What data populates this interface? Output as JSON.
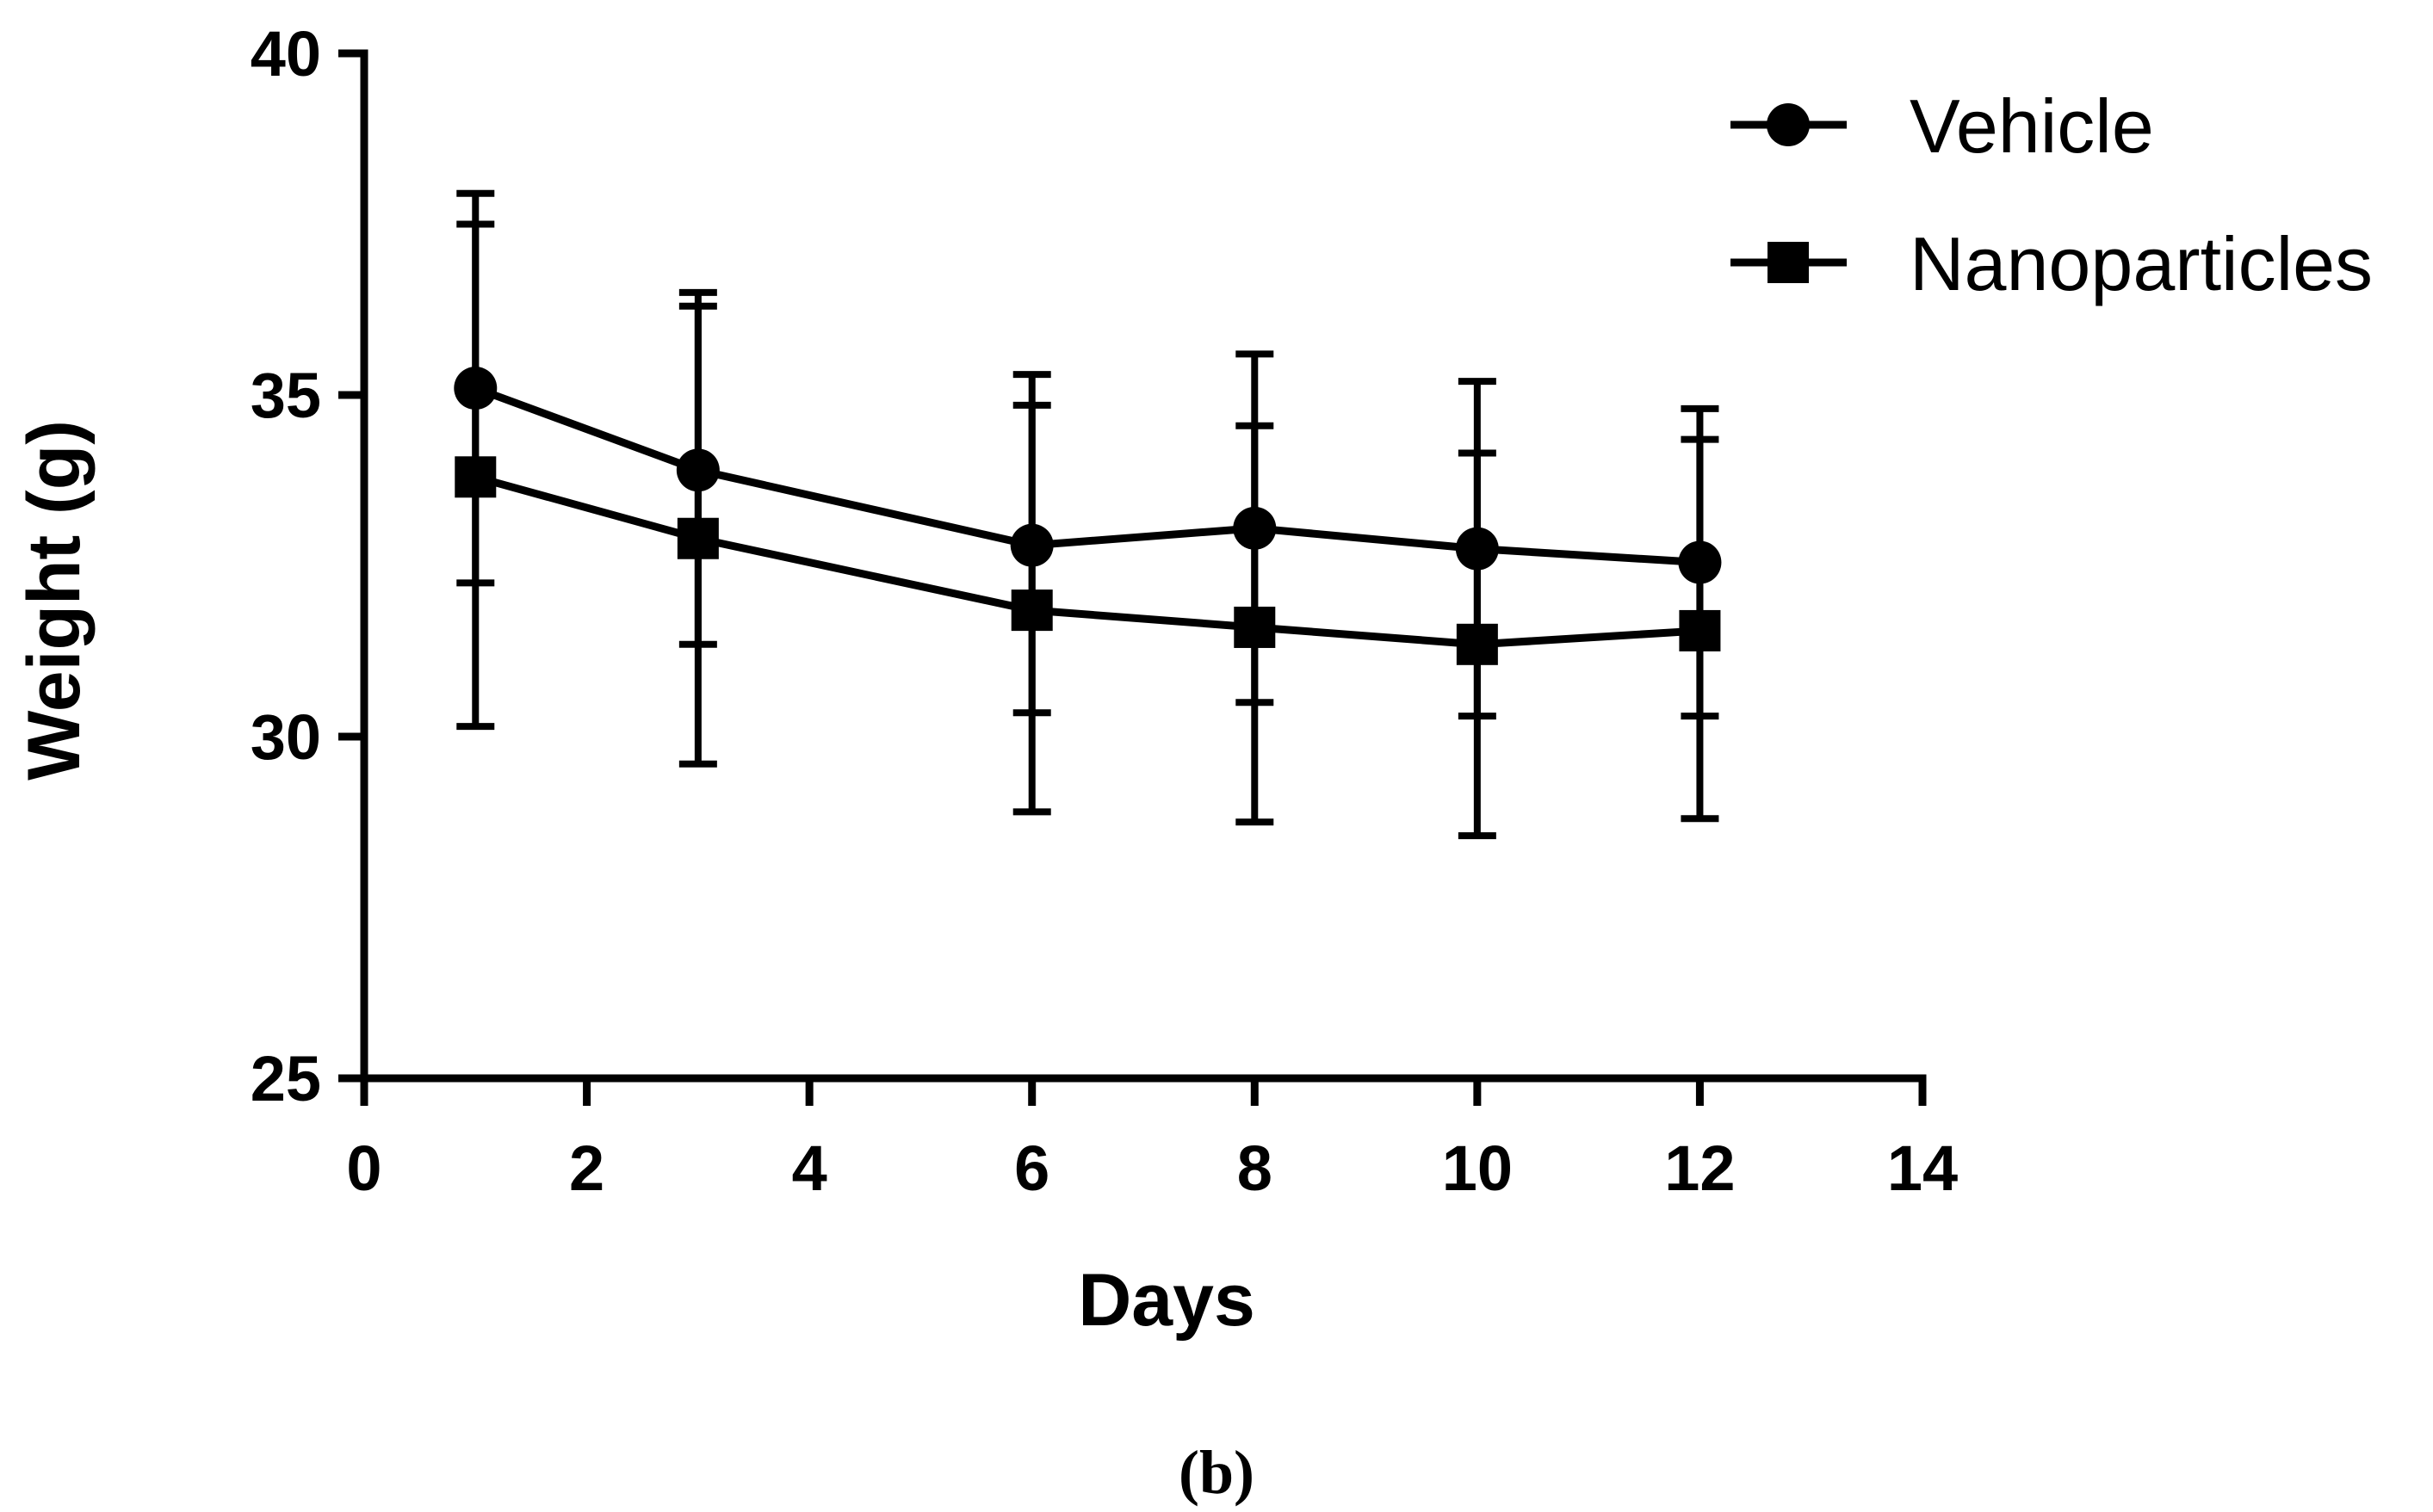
{
  "chart_data": {
    "type": "line",
    "title": "",
    "xlabel": "Days",
    "ylabel": "Weight (g)",
    "caption": "(b)",
    "xlim": [
      0,
      14
    ],
    "ylim": [
      25,
      40
    ],
    "x_ticks": [
      0,
      2,
      4,
      6,
      8,
      10,
      12,
      14
    ],
    "y_ticks": [
      25,
      30,
      35,
      40
    ],
    "legend_position": "top-right",
    "series": [
      {
        "name": "Vehicle",
        "marker": "circle",
        "color": "#000000",
        "x": [
          1,
          3,
          6,
          8,
          10,
          12
        ],
        "values": [
          35.1,
          33.9,
          32.8,
          33.05,
          32.75,
          32.55
        ],
        "error_upper": [
          37.5,
          36.3,
          34.85,
          34.55,
          34.15,
          34.35
        ],
        "error_lower": [
          32.25,
          31.35,
          30.35,
          30.5,
          30.3,
          30.3
        ]
      },
      {
        "name": "Nanoparticles",
        "marker": "square",
        "color": "#000000",
        "x": [
          1,
          3,
          6,
          8,
          10,
          12
        ],
        "values": [
          33.8,
          32.9,
          31.85,
          31.6,
          31.35,
          31.55
        ],
        "error_upper": [
          37.95,
          36.5,
          35.3,
          35.6,
          35.2,
          34.8
        ],
        "error_lower": [
          30.15,
          29.6,
          28.9,
          28.75,
          28.55,
          28.8
        ]
      }
    ]
  }
}
